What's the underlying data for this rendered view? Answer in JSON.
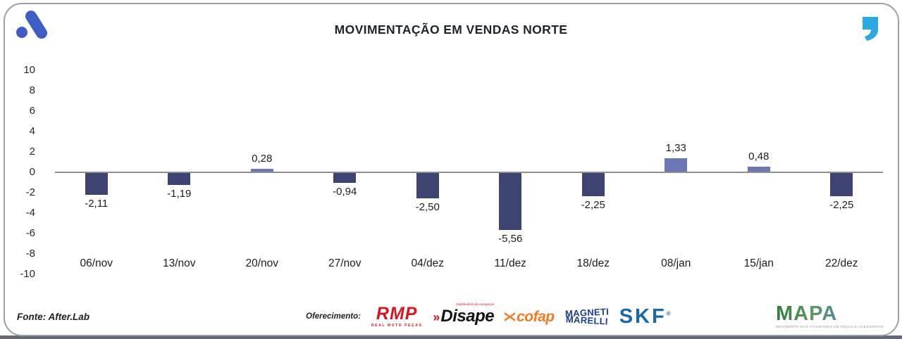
{
  "header": {
    "title": "MOVIMENTAÇÃO EM VENDAS NORTE"
  },
  "chart_data": {
    "type": "bar",
    "title": "MOVIMENTAÇÃO EM VENDAS NORTE",
    "categories": [
      "06/nov",
      "13/nov",
      "20/nov",
      "27/nov",
      "04/dez",
      "11/dez",
      "18/dez",
      "08/jan",
      "15/jan",
      "22/dez"
    ],
    "values": [
      -2.11,
      -1.19,
      0.28,
      -0.94,
      -2.5,
      -5.56,
      -2.25,
      1.33,
      0.48,
      -2.25
    ],
    "value_labels": [
      "-2,11",
      "-1,19",
      "0,28",
      "-0,94",
      "-2,50",
      "-5,56",
      "-2,25",
      "1,33",
      "0,48",
      "-2,25"
    ],
    "xlabel": "",
    "ylabel": "",
    "ylim": [
      -10,
      10
    ],
    "yticks": [
      10,
      8,
      6,
      4,
      2,
      0,
      -2,
      -4,
      -6,
      -8,
      -10
    ],
    "grid": false,
    "legend": false,
    "positive_color": "#6b76b8",
    "negative_color": "#3d4471",
    "zero_line_color": "#8f8f8f"
  },
  "icons": {
    "afterlab_logo_color": "#3e5ec6",
    "quote_color": "#2aa9e0"
  },
  "footer": {
    "source": "Fonte: After.Lab",
    "sponsor_label": "Oferecimento:",
    "sponsors": {
      "rmp": {
        "name": "RMP",
        "subtext": "REAL MOTO PEÇAS"
      },
      "disape": {
        "prefix": "»",
        "name": "Disape",
        "subtext": "Distribuidora de Autopeças"
      },
      "cofap": {
        "name": "cofap"
      },
      "magneti": {
        "line1": "MAGNETI",
        "line2": "MARELLI"
      },
      "skf": {
        "name": "SKF",
        "reg": "®"
      }
    },
    "mapa": {
      "name": "MAPA",
      "tagline": "MOVIMENTO DAS ATIVIDADES EM PEÇAS E ACESSÓRIOS"
    }
  }
}
